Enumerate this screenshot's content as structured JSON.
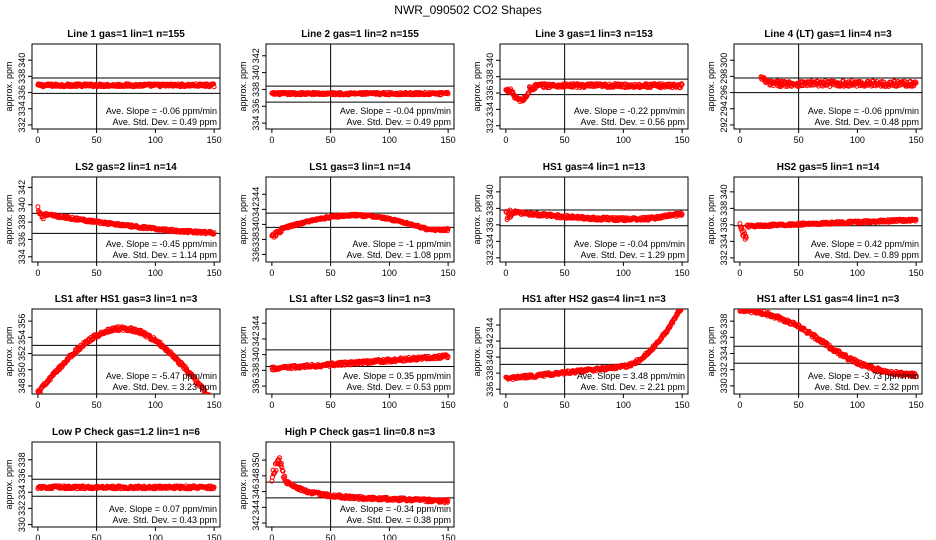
{
  "figure_title": "NWR_090502  CO2 Shapes",
  "colors": {
    "points": "#ff0000",
    "lines": "#000000"
  },
  "chart_data": [
    {
      "type": "scatter",
      "title": "Line 1 gas=1 lin=1 n=155",
      "ylabel": "approx. ppm",
      "xlim": [
        -5,
        155
      ],
      "xticks": [
        0,
        50,
        100,
        150
      ],
      "ylim": [
        331.5,
        342
      ],
      "yticks": [
        332,
        334,
        336,
        338,
        340
      ],
      "hlines": [
        335.9,
        337.8
      ],
      "vline": 50,
      "shape": {
        "kind": "flat",
        "base": 336.9,
        "noise": 0.18
      },
      "slope_label": "Ave. Slope = -0.06  ppm/min",
      "std_label": "Ave. Std. Dev. =  0.49  ppm"
    },
    {
      "type": "scatter",
      "title": "Line 2 gas=1 lin=2 n=155",
      "ylabel": "approx. ppm",
      "xlim": [
        -5,
        155
      ],
      "xticks": [
        0,
        50,
        100,
        150
      ],
      "ylim": [
        333.3,
        343.4
      ],
      "yticks": [
        334,
        336,
        338,
        340,
        342
      ],
      "hlines": [
        336.5,
        338.4
      ],
      "vline": 50,
      "shape": {
        "kind": "flat",
        "base": 337.5,
        "noise": 0.15
      },
      "slope_label": "Ave. Slope = -0.04  ppm/min",
      "std_label": "Ave. Std. Dev. =  0.49  ppm"
    },
    {
      "type": "scatter",
      "title": "Line 3 gas=1 lin=3 n=153",
      "ylabel": "approx. ppm",
      "xlim": [
        -5,
        155
      ],
      "xticks": [
        0,
        50,
        100,
        150
      ],
      "ylim": [
        331.6,
        342
      ],
      "yticks": [
        332,
        334,
        336,
        338,
        340
      ],
      "hlines": [
        335.8,
        337.7
      ],
      "vline": 50,
      "shape": {
        "kind": "dip",
        "base": 336.9,
        "noise": 0.25
      },
      "slope_label": "Ave. Slope = -0.22  ppm/min",
      "std_label": "Ave. Std. Dev. =  0.56  ppm"
    },
    {
      "type": "scatter",
      "title": "Line 4 (LT) gas=1 lin=4 n=3",
      "ylabel": "approx. ppm",
      "xlim": [
        -5,
        155
      ],
      "xticks": [
        0,
        50,
        100,
        150
      ],
      "ylim": [
        291.5,
        302
      ],
      "yticks": [
        292,
        294,
        296,
        298,
        300
      ],
      "hlines": [
        296,
        297.8
      ],
      "vline": 50,
      "shape": {
        "kind": "late",
        "start": 18,
        "base": 297.1,
        "noise": 0.35
      },
      "slope_label": "Ave. Slope = -0.06  ppm/min",
      "std_label": "Ave. Std. Dev. =  0.48  ppm"
    },
    {
      "type": "scatter",
      "title": "LS2 gas=2 lin=1 n=14",
      "ylabel": "approx. ppm",
      "xlim": [
        -5,
        155
      ],
      "xticks": [
        0,
        50,
        100,
        150
      ],
      "ylim": [
        333.4,
        343.2
      ],
      "yticks": [
        334,
        336,
        338,
        340,
        342
      ],
      "hlines": [
        336.7,
        339
      ],
      "vline": 50,
      "shape": {
        "kind": "ls2",
        "noise": 0.15
      },
      "slope_label": "Ave. Slope = -0.45  ppm/min",
      "std_label": "Ave. Std. Dev. =  1.14  ppm"
    },
    {
      "type": "scatter",
      "title": "LS1 gas=3 lin=1 n=14",
      "ylabel": "approx. ppm",
      "xlim": [
        -5,
        155
      ],
      "xticks": [
        0,
        50,
        100,
        150
      ],
      "ylim": [
        335,
        346.3
      ],
      "yticks": [
        336,
        338,
        340,
        342,
        344
      ],
      "hlines": [
        339.6,
        341.5
      ],
      "vline": 50,
      "shape": {
        "kind": "ls1",
        "noise": 0.15
      },
      "slope_label": "Ave. Slope = -1  ppm/min",
      "std_label": "Ave. Std. Dev. =  1.08  ppm"
    },
    {
      "type": "scatter",
      "title": "HS1 gas=4 lin=1 n=13",
      "ylabel": "approx. ppm",
      "xlim": [
        -5,
        155
      ],
      "xticks": [
        0,
        50,
        100,
        150
      ],
      "ylim": [
        331.5,
        341.8
      ],
      "yticks": [
        332,
        334,
        336,
        338,
        340
      ],
      "hlines": [
        335.9,
        337.8
      ],
      "vline": 50,
      "shape": {
        "kind": "hs1",
        "noise": 0.2
      },
      "slope_label": "Ave. Slope = -0.04  ppm/min",
      "std_label": "Ave. Std. Dev. =  1.29  ppm"
    },
    {
      "type": "scatter",
      "title": "HS2 gas=5 lin=1 n=14",
      "ylabel": "approx. ppm",
      "xlim": [
        -5,
        155
      ],
      "xticks": [
        0,
        50,
        100,
        150
      ],
      "ylim": [
        331.5,
        341.8
      ],
      "yticks": [
        332,
        334,
        336,
        338,
        340
      ],
      "hlines": [
        335.9,
        337.8
      ],
      "vline": 50,
      "shape": {
        "kind": "hs2",
        "noise": 0.15
      },
      "slope_label": "Ave. Slope = 0.42  ppm/min",
      "std_label": "Ave. Std. Dev. =  0.89  ppm"
    },
    {
      "type": "scatter",
      "title": "LS1 after HS1 gas=3 lin=1 n=3",
      "ylabel": "approx. ppm",
      "xlim": [
        -5,
        155
      ],
      "xticks": [
        0,
        50,
        100,
        150
      ],
      "ylim": [
        347,
        357.5
      ],
      "yticks": [
        348,
        350,
        352,
        354,
        356
      ],
      "hlines": [
        351.8,
        353
      ],
      "vline": 50,
      "shape": {
        "kind": "arch",
        "noise": 0.25
      },
      "slope_label": "Ave. Slope = -5.47  ppm/min",
      "std_label": "Ave. Std. Dev. =  3.23  ppm"
    },
    {
      "type": "scatter",
      "title": "LS1 after LS2 gas=3 lin=1 n=3",
      "ylabel": "approx. ppm",
      "xlim": [
        -5,
        155
      ],
      "xticks": [
        0,
        50,
        100,
        150
      ],
      "ylim": [
        335,
        345.8
      ],
      "yticks": [
        336,
        338,
        340,
        342,
        344
      ],
      "hlines": [
        338.5,
        340.6
      ],
      "vline": 50,
      "shape": {
        "kind": "rise",
        "from": 338.2,
        "to": 339.8,
        "noise": 0.22
      },
      "slope_label": "Ave. Slope = 0.35  ppm/min",
      "std_label": "Ave. Std. Dev. =  0.53  ppm"
    },
    {
      "type": "scatter",
      "title": "HS1 after HS2 gas=4 lin=1 n=3",
      "ylabel": "approx. ppm",
      "xlim": [
        -5,
        155
      ],
      "xticks": [
        0,
        50,
        100,
        150
      ],
      "ylim": [
        335.4,
        346
      ],
      "yticks": [
        336,
        338,
        340,
        342,
        344
      ],
      "hlines": [
        339.1,
        341.1
      ],
      "vline": 50,
      "shape": {
        "kind": "hockey",
        "noise": 0.2
      },
      "slope_label": "Ave. Slope = 3.48  ppm/min",
      "std_label": "Ave. Std. Dev. =  2.21  ppm"
    },
    {
      "type": "scatter",
      "title": "HS1 after LS1 gas=4 lin=1 n=3",
      "ylabel": "approx. ppm",
      "xlim": [
        -5,
        155
      ],
      "xticks": [
        0,
        50,
        100,
        150
      ],
      "ylim": [
        329,
        339.5
      ],
      "yticks": [
        330,
        332,
        334,
        336,
        338
      ],
      "hlines": [
        332.8,
        334.9
      ],
      "vline": 50,
      "shape": {
        "kind": "decline",
        "noise": 0.25
      },
      "slope_label": "Ave. Slope = -3.73  ppm/min",
      "std_label": "Ave. Std. Dev. =  2.32  ppm"
    },
    {
      "type": "scatter",
      "title": "Low P Check gas=1.2 lin=1 n=6",
      "ylabel": "approx. ppm",
      "xlim": [
        -5,
        155
      ],
      "xticks": [
        0,
        50,
        100,
        150
      ],
      "ylim": [
        329.7,
        340.2
      ],
      "yticks": [
        330,
        332,
        334,
        336,
        338
      ],
      "hlines": [
        333.5,
        335.6
      ],
      "vline": 50,
      "shape": {
        "kind": "flat",
        "base": 334.6,
        "noise": 0.18
      },
      "slope_label": "Ave. Slope = 0.07  ppm/min",
      "std_label": "Ave. Std. Dev. =  0.43  ppm"
    },
    {
      "type": "scatter",
      "title": "High P Check gas=1 lin=0.8 n=3",
      "ylabel": "approx. ppm",
      "xlim": [
        -5,
        155
      ],
      "xticks": [
        0,
        50,
        100,
        150
      ],
      "ylim": [
        341.5,
        352.3
      ],
      "yticks": [
        342,
        344,
        346,
        348,
        350
      ],
      "hlines": [
        345.2,
        347.2
      ],
      "vline": 50,
      "shape": {
        "kind": "spike",
        "noise": 0.2
      },
      "slope_label": "Ave. Slope = -0.34  ppm/min",
      "std_label": "Ave. Std. Dev. =  0.38  ppm"
    }
  ]
}
